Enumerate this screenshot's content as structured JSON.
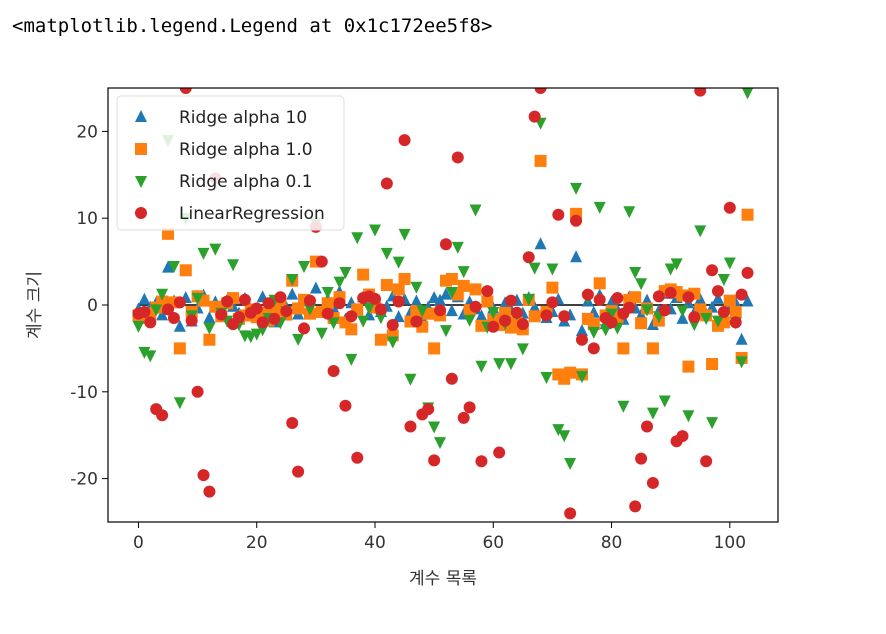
{
  "output_text": "<matplotlib.legend.Legend at 0x1c172ee5f8>",
  "chart_data": {
    "type": "scatter",
    "xlabel": "계수 목록",
    "ylabel": "계수 크기",
    "x": [
      0,
      1,
      2,
      3,
      4,
      5,
      6,
      7,
      8,
      9,
      10,
      11,
      12,
      13,
      14,
      15,
      16,
      17,
      18,
      19,
      20,
      21,
      22,
      23,
      24,
      25,
      26,
      27,
      28,
      29,
      30,
      31,
      32,
      33,
      34,
      35,
      36,
      37,
      38,
      39,
      40,
      41,
      42,
      43,
      44,
      45,
      46,
      47,
      48,
      49,
      50,
      51,
      52,
      53,
      54,
      55,
      56,
      57,
      58,
      59,
      60,
      61,
      62,
      63,
      64,
      65,
      66,
      67,
      68,
      69,
      70,
      71,
      72,
      73,
      74,
      75,
      76,
      77,
      78,
      79,
      80,
      81,
      82,
      83,
      84,
      85,
      86,
      87,
      88,
      89,
      90,
      91,
      92,
      93,
      94,
      95,
      96,
      97,
      98,
      99,
      100,
      101,
      102,
      103
    ],
    "series": [
      {
        "name": "Ridge alpha 10",
        "color": "#1f77b4",
        "marker": "^",
        "values": [
          -0.5,
          0.6,
          -0.3,
          0.2,
          -1.2,
          4.3,
          0.4,
          -2.5,
          0.8,
          -1.9,
          -0.4,
          1.1,
          -1.5,
          0.3,
          -0.8,
          0.5,
          -0.2,
          -1.0,
          0.7,
          -0.6,
          -1.3,
          0.9,
          -0.7,
          -2.0,
          0.1,
          -0.3,
          1.2,
          -1.1,
          0.4,
          -0.5,
          1.9,
          -0.9,
          0.6,
          -0.4,
          1.5,
          -1.7,
          0.2,
          -0.6,
          0.9,
          -1.2,
          0.3,
          -0.8,
          -0.2,
          1.0,
          -1.4,
          0.6,
          -0.9,
          0.4,
          -1.6,
          -0.3,
          0.8,
          0.5,
          1.2,
          -0.7,
          0.9,
          -1.1,
          0.3,
          -0.5,
          -1.3,
          0.7,
          -0.4,
          -1.8,
          0.2,
          -0.6,
          0.5,
          -1.0,
          0.8,
          -0.3,
          7.0,
          -1.5,
          -0.8,
          0.6,
          -1.9,
          -1.2,
          5.5,
          -3.0,
          0.4,
          -0.9,
          1.1,
          -2.2,
          0.3,
          -0.6,
          -1.7,
          0.9,
          -0.4,
          -1.2,
          0.5,
          -2.3,
          -0.7,
          1.3,
          -0.5,
          0.8,
          -1.6,
          0.2,
          -0.9,
          0.6,
          -1.1,
          -0.3,
          0.7,
          -1.8,
          -0.4,
          0.2,
          -4.0,
          0.4
        ]
      },
      {
        "name": "Ridge alpha 1.0",
        "color": "#ff7f0e",
        "marker": "s",
        "values": [
          -1.2,
          -1.5,
          -1.0,
          -0.3,
          0.4,
          8.2,
          0.3,
          -5.0,
          4.0,
          -0.8,
          1.0,
          0.5,
          -4.0,
          -0.2,
          -1.3,
          0.2,
          0.8,
          -1.6,
          -1.2,
          -0.5,
          -1.4,
          -0.9,
          -1.8,
          -0.6,
          0.3,
          -1.1,
          2.8,
          -0.4,
          0.6,
          -1.0,
          5.0,
          -0.8,
          0.2,
          -1.5,
          0.9,
          -2.0,
          -2.8,
          -0.5,
          3.5,
          1.2,
          -0.3,
          -4.0,
          2.3,
          -3.5,
          1.8,
          3.0,
          -1.9,
          -0.7,
          -2.5,
          -1.0,
          -5.0,
          -1.2,
          2.8,
          3.0,
          1.2,
          2.2,
          -0.6,
          1.8,
          -2.4,
          0.4,
          -1.7,
          -2.3,
          -0.9,
          -2.6,
          -2.0,
          -2.8,
          0.6,
          -1.3,
          16.6,
          -0.8,
          2.0,
          -8.0,
          -8.5,
          -7.8,
          10.5,
          -8.0,
          -1.6,
          -2.2,
          2.5,
          -1.2,
          -0.7,
          -1.5,
          -5.0,
          0.6,
          0.9,
          -2.1,
          -0.4,
          -5.0,
          -1.8,
          1.6,
          1.8,
          1.5,
          1.1,
          -7.1,
          1.3,
          -0.5,
          -1.2,
          -6.8,
          -2.4,
          -2.0,
          0.5,
          -0.8,
          -6.1,
          10.4
        ]
      },
      {
        "name": "Ridge alpha 0.1",
        "color": "#2ca02c",
        "marker": "v",
        "values": [
          -2.4,
          -5.4,
          -5.8,
          -0.5,
          1.3,
          19.0,
          4.5,
          -11.2,
          10.0,
          -1.2,
          0.8,
          6.0,
          -2.6,
          6.5,
          -0.9,
          -1.8,
          4.7,
          -2.2,
          -3.5,
          -3.6,
          -3.3,
          -2.8,
          -1.5,
          0.6,
          -2.0,
          -0.7,
          3.0,
          -3.9,
          4.5,
          -0.4,
          9.5,
          -3.2,
          1.5,
          -2.0,
          2.7,
          3.8,
          -6.2,
          7.8,
          -1.8,
          -0.3,
          8.7,
          -1.4,
          6.0,
          -4.2,
          5.0,
          8.2,
          -8.5,
          2.1,
          -0.6,
          -11.8,
          -14.0,
          -15.8,
          -2.9,
          1.5,
          6.7,
          3.9,
          -1.7,
          11.0,
          -7.0,
          -2.5,
          -0.8,
          -6.7,
          -2.1,
          -6.7,
          -1.0,
          -5.0,
          0.7,
          4.3,
          21.0,
          -8.3,
          4.2,
          -14.3,
          -15.0,
          -18.2,
          13.5,
          -8.2,
          0.9,
          -3.1,
          11.3,
          -2.8,
          -1.0,
          -2.6,
          -11.6,
          10.8,
          3.8,
          2.5,
          -0.5,
          -12.4,
          -1.3,
          -11.0,
          4.2,
          4.8,
          -0.6,
          -12.7,
          -2.2,
          8.6,
          -1.5,
          -13.5,
          -1.8,
          3.0,
          4.9,
          -2.0,
          -6.5,
          24.5
        ]
      },
      {
        "name": "LinearRegression",
        "color": "#d62728",
        "marker": "o",
        "values": [
          -1.0,
          -0.8,
          -2.0,
          -12.0,
          -12.7,
          -0.5,
          -1.5,
          0.3,
          25.0,
          -1.8,
          -10.0,
          -19.6,
          -21.5,
          14.6,
          -1.1,
          0.4,
          -2.2,
          -1.4,
          0.6,
          -0.9,
          -0.4,
          -2.0,
          0.2,
          -1.6,
          0.9,
          -0.7,
          -13.6,
          -19.2,
          -2.7,
          0.5,
          9.0,
          5.0,
          -1.0,
          -7.6,
          0.2,
          -11.6,
          -1.3,
          -17.6,
          0.8,
          1.0,
          0.7,
          -0.5,
          14.0,
          -2.3,
          0.4,
          19.0,
          -14.0,
          -1.9,
          -12.6,
          -12.0,
          -17.9,
          -0.6,
          7.0,
          -8.5,
          17.0,
          -13.0,
          -11.8,
          -0.2,
          -18.0,
          1.6,
          -2.5,
          -17.0,
          -1.8,
          0.5,
          -0.9,
          -2.2,
          5.5,
          21.7,
          25.0,
          -1.2,
          0.3,
          10.4,
          -1.3,
          -24.0,
          9.7,
          -4.0,
          1.2,
          -5.0,
          0.6,
          -1.5,
          -2.0,
          0.8,
          -1.0,
          -0.3,
          -23.2,
          -17.7,
          -14.0,
          -20.5,
          1.0,
          -0.6,
          1.4,
          -15.7,
          -15.1,
          0.9,
          -1.4,
          24.7,
          -18.0,
          4.0,
          1.6,
          -0.8,
          11.2,
          -2.0,
          1.2,
          3.7
        ]
      }
    ],
    "hline": {
      "y": 0,
      "xmin": 0,
      "xmax": 103,
      "color": "#000000"
    },
    "xlim": [
      -5.15,
      108.15
    ],
    "xticks": [
      0,
      20,
      40,
      60,
      80,
      100
    ],
    "ylim": [
      -25,
      25
    ],
    "yticks": [
      -20,
      -10,
      0,
      10,
      20
    ],
    "legend": "upper left",
    "grid": false
  }
}
